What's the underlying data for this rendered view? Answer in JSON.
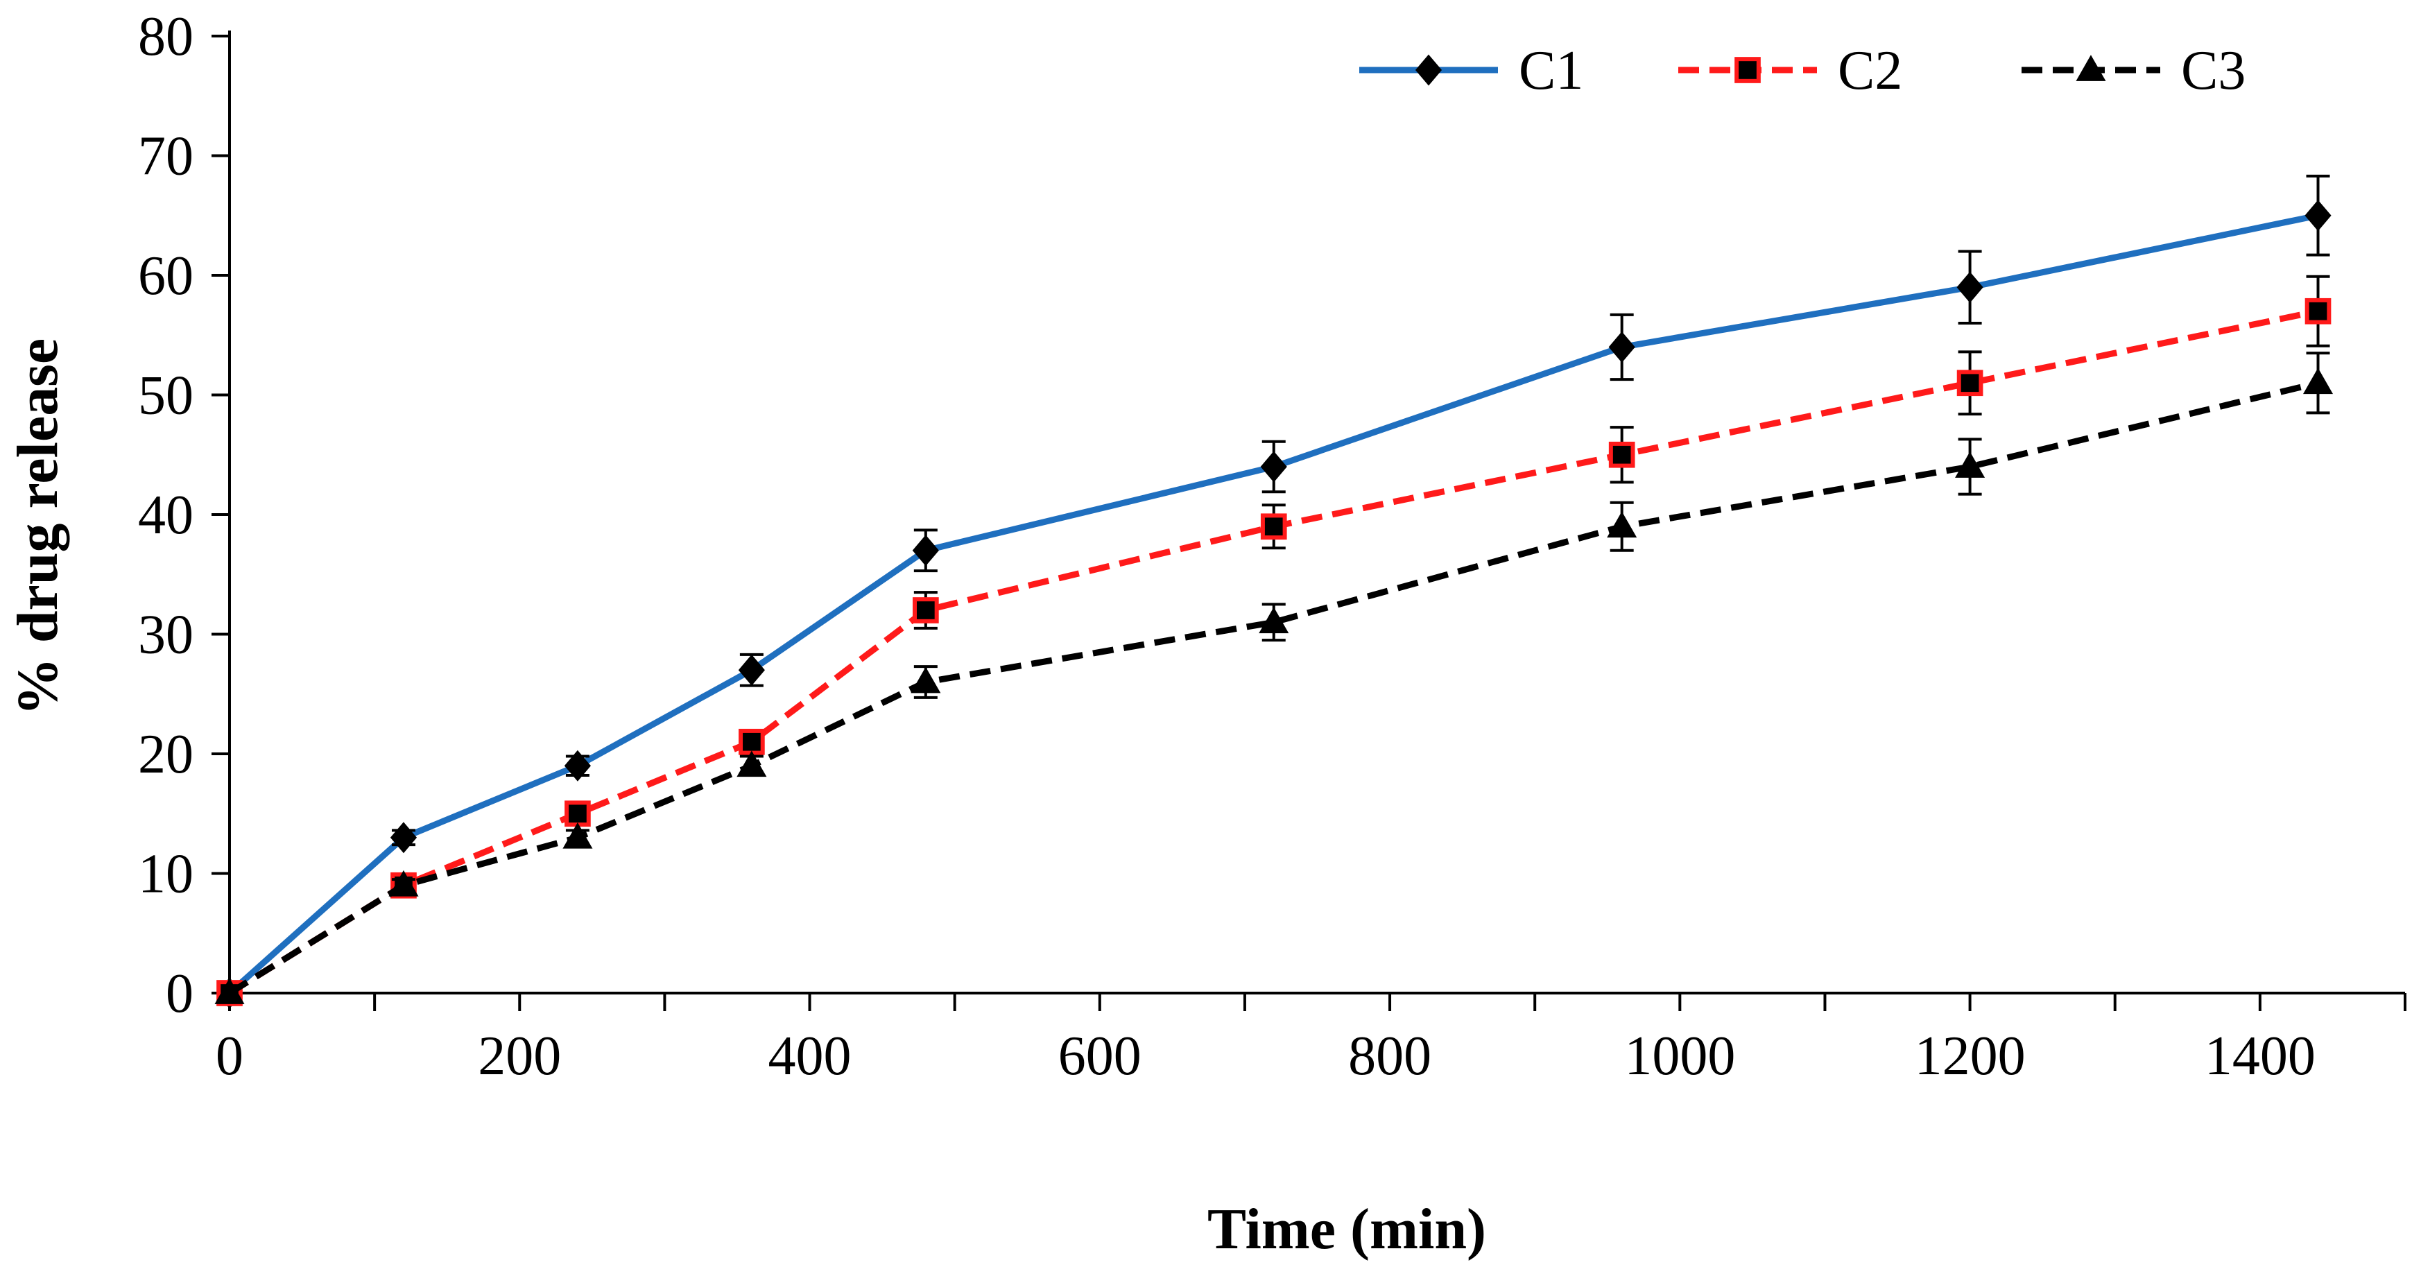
{
  "chart_data": {
    "type": "line",
    "title": "",
    "xlabel": "Time (min)",
    "ylabel": "% drug release",
    "xlim": [
      0,
      1500
    ],
    "ylim": [
      0,
      80
    ],
    "xticks": [
      0,
      200,
      400,
      600,
      800,
      1000,
      1200,
      1400
    ],
    "yticks": [
      0,
      10,
      20,
      30,
      40,
      50,
      60,
      70,
      80
    ],
    "grid": false,
    "legend_position": "top-right",
    "x": [
      0,
      120,
      240,
      360,
      480,
      720,
      960,
      1200,
      1440
    ],
    "series": [
      {
        "name": "C1",
        "color": "#1f6fbf",
        "line_style": "solid",
        "marker": "diamond",
        "values": [
          0,
          13,
          19,
          27,
          37,
          44,
          54,
          59,
          65
        ],
        "errors": [
          0,
          0.6,
          0.8,
          1.3,
          1.7,
          2.1,
          2.7,
          3.0,
          3.3
        ]
      },
      {
        "name": "C2",
        "color": "#ff1a1a",
        "line_style": "dashed",
        "marker": "square",
        "values": [
          0,
          9,
          15,
          21,
          32,
          39,
          45,
          51,
          57
        ],
        "errors": [
          0,
          0.5,
          0.7,
          0.9,
          1.5,
          1.8,
          2.3,
          2.6,
          2.9
        ]
      },
      {
        "name": "C3",
        "color": "#000000",
        "line_style": "dashed",
        "marker": "triangle",
        "values": [
          0,
          9,
          13,
          19,
          26,
          31,
          39,
          44,
          51
        ],
        "errors": [
          0,
          0.5,
          0.6,
          0.8,
          1.3,
          1.5,
          2.0,
          2.3,
          2.5
        ]
      }
    ]
  }
}
